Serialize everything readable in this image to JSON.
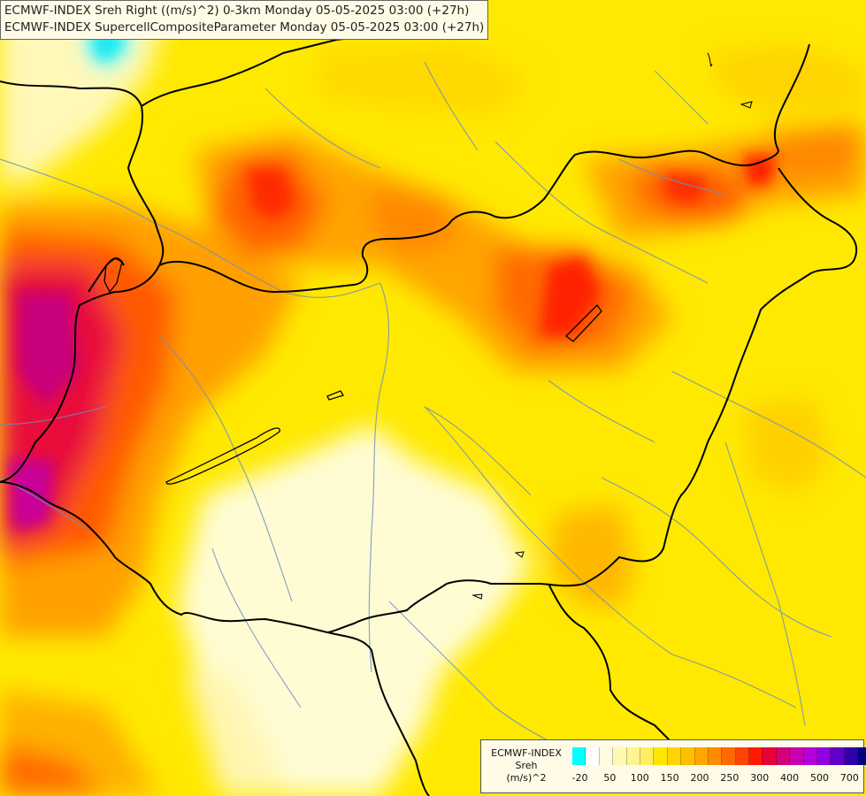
{
  "title": {
    "line1": "ECMWF-INDEX Sreh Right ((m/s)^2) 0-3km Monday 05-05-2025 03:00 (+27h)",
    "line2": "ECMWF-INDEX SupercellCompositeParameter Monday 05-05-2025 03:00 (+27h)"
  },
  "legend": {
    "line1": "ECMWF-INDEX",
    "line2": "Sreh",
    "line3": "(m/s)^2",
    "colors": [
      "#00ffff",
      "#ffffff",
      "#fffce0",
      "#fff8b0",
      "#fff490",
      "#ffef60",
      "#ffe600",
      "#ffd400",
      "#ffbf00",
      "#ffa600",
      "#ff8c00",
      "#ff6a00",
      "#ff4400",
      "#ff1a00",
      "#e8003a",
      "#d4007a",
      "#c800b0",
      "#b400d8",
      "#9000e0",
      "#6000c8",
      "#3000a8",
      "#000080"
    ],
    "ticks": [
      {
        "label": "-20",
        "idx": 0.5
      },
      {
        "label": "50",
        "idx": 2.5
      },
      {
        "label": "100",
        "idx": 4.5
      },
      {
        "label": "150",
        "idx": 6.5
      },
      {
        "label": "200",
        "idx": 8.5
      },
      {
        "label": "250",
        "idx": 10.5
      },
      {
        "label": "300",
        "idx": 12.5
      },
      {
        "label": "400",
        "idx": 14.5
      },
      {
        "label": "500",
        "idx": 16.5
      },
      {
        "label": "700",
        "idx": 18.5
      }
    ]
  }
}
